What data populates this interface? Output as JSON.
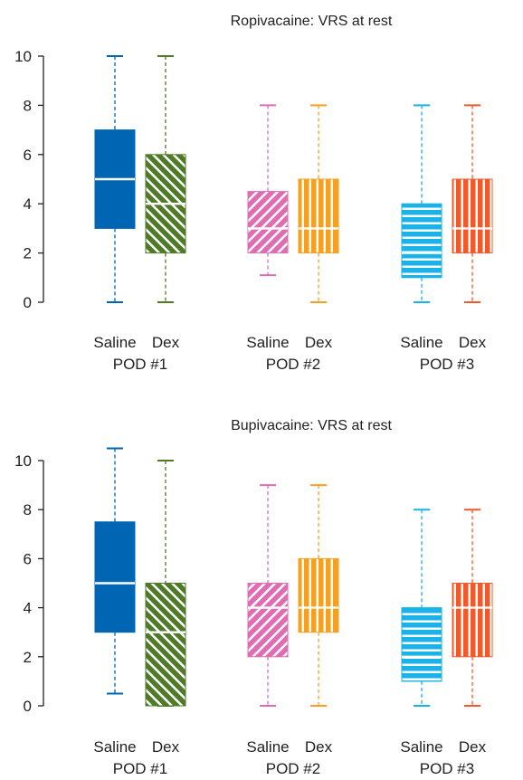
{
  "colors": {
    "saline_1": "#0066b3",
    "dex_1": "#4f7a28",
    "saline_2": "#e06cb4",
    "dex_2": "#f5a023",
    "saline_3": "#1ab3e8",
    "dex_3": "#f2592a",
    "axis": "#222222",
    "median": "#ffffff"
  },
  "chart_data": [
    {
      "type": "box",
      "title": "Ropivacaine: VRS at rest",
      "ylim": [
        0,
        10
      ],
      "yticks": [
        "0",
        "2",
        "4",
        "6",
        "8",
        "10"
      ],
      "groups": [
        {
          "label": "POD #1",
          "boxes": [
            {
              "name": "Saline",
              "color_key": "saline_1",
              "pattern": "solid",
              "min": 0,
              "q1": 3,
              "median": 5,
              "q3": 7,
              "max": 10
            },
            {
              "name": "Dex",
              "color_key": "dex_1",
              "pattern": "diag-back",
              "min": 0,
              "q1": 2,
              "median": 4,
              "q3": 6,
              "max": 10
            }
          ]
        },
        {
          "label": "POD #2",
          "boxes": [
            {
              "name": "Saline",
              "color_key": "saline_2",
              "pattern": "diag-fwd",
              "min": 1.1,
              "q1": 2,
              "median": 3,
              "q3": 4.5,
              "max": 8
            },
            {
              "name": "Dex",
              "color_key": "dex_2",
              "pattern": "vertical",
              "min": 0,
              "q1": 2,
              "median": 3,
              "q3": 5,
              "max": 8
            }
          ]
        },
        {
          "label": "POD #3",
          "boxes": [
            {
              "name": "Saline",
              "color_key": "saline_3",
              "pattern": "horizontal",
              "min": 0,
              "q1": 1,
              "median": 2,
              "q3": 4,
              "max": 8
            },
            {
              "name": "Dex",
              "color_key": "dex_3",
              "pattern": "vertical",
              "min": 0,
              "q1": 2,
              "median": 3,
              "q3": 5,
              "max": 8
            }
          ]
        }
      ]
    },
    {
      "type": "box",
      "title": "Bupivacaine: VRS at rest",
      "ylim": [
        0,
        10
      ],
      "yticks": [
        "0",
        "2",
        "4",
        "6",
        "8",
        "10"
      ],
      "groups": [
        {
          "label": "POD #1",
          "boxes": [
            {
              "name": "Saline",
              "color_key": "saline_1",
              "pattern": "solid",
              "min": 0.5,
              "q1": 3,
              "median": 5,
              "q3": 7.5,
              "max": 10.5
            },
            {
              "name": "Dex",
              "color_key": "dex_1",
              "pattern": "diag-back",
              "min": 0,
              "q1": 0,
              "median": 3,
              "q3": 5,
              "max": 10
            }
          ]
        },
        {
          "label": "POD #2",
          "boxes": [
            {
              "name": "Saline",
              "color_key": "saline_2",
              "pattern": "diag-fwd",
              "min": 0,
              "q1": 2,
              "median": 4,
              "q3": 5,
              "max": 9
            },
            {
              "name": "Dex",
              "color_key": "dex_2",
              "pattern": "vertical",
              "min": 0,
              "q1": 3,
              "median": 4,
              "q3": 6,
              "max": 9
            }
          ]
        },
        {
          "label": "POD #3",
          "boxes": [
            {
              "name": "Saline",
              "color_key": "saline_3",
              "pattern": "horizontal",
              "min": 0,
              "q1": 1,
              "median": 2,
              "q3": 4,
              "max": 8
            },
            {
              "name": "Dex",
              "color_key": "dex_3",
              "pattern": "vertical",
              "min": 0,
              "q1": 2,
              "median": 4,
              "q3": 5,
              "max": 8
            }
          ]
        }
      ]
    }
  ]
}
